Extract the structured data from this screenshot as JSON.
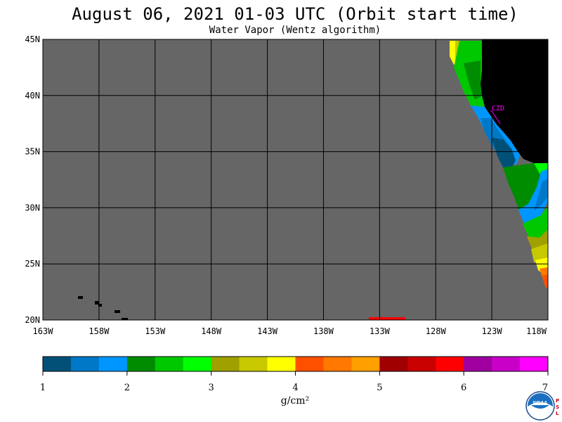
{
  "header": {
    "title": "August 06, 2021  01-03 UTC  (Orbit start time)",
    "subtitle": "Water Vapor (Wentz algorithm)"
  },
  "map": {
    "lat_labels": [
      "45N",
      "40N",
      "35N",
      "30N",
      "25N",
      "20N"
    ],
    "lon_labels": [
      "163W",
      "158W",
      "153W",
      "148W",
      "143W",
      "138W",
      "133W",
      "128W",
      "123W",
      "118W"
    ],
    "station_label": "CZD",
    "colors": {
      "no_data": "#666666",
      "land": "#000000",
      "grid": "#000000",
      "station": "#ff00ff"
    }
  },
  "colorbar": {
    "tick_labels": [
      "1",
      "2",
      "3",
      "4",
      "5",
      "6",
      "7"
    ],
    "units": "g/cm²",
    "colors": [
      "#005078",
      "#0078c8",
      "#0096ff",
      "#008c00",
      "#00c800",
      "#00ff00",
      "#a0a000",
      "#c8c800",
      "#ffff00",
      "#ff5000",
      "#ff7800",
      "#ffa000",
      "#a00000",
      "#c80000",
      "#ff0000",
      "#a000a0",
      "#c800c8",
      "#ff00ff"
    ]
  },
  "logo": {
    "text": "NOAA",
    "side_letters": [
      "P",
      "S",
      "L"
    ]
  }
}
